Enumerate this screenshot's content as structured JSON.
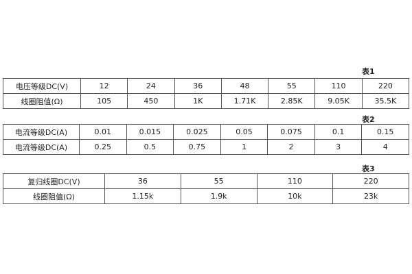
{
  "table1": {
    "caption": "表1",
    "rows": [
      [
        "电压等级DC(V)",
        "12",
        "24",
        "36",
        "48",
        "55",
        "110",
        "220"
      ],
      [
        "线圈阻值(Ω)",
        "105",
        "450",
        "1K",
        "1.71K",
        "2.85K",
        "9.05K",
        "35.5K"
      ]
    ]
  },
  "table2": {
    "caption": "表2",
    "rows": [
      [
        "电流等级DC(A)",
        "0.01",
        "0.015",
        "0.025",
        "0.05",
        "0.075",
        "0.1",
        "0.15"
      ],
      [
        "电流等级DC(A)",
        "0.25",
        "0.5",
        "0.75",
        "1",
        "2",
        "3",
        "4"
      ]
    ]
  },
  "table3": {
    "caption": "表3",
    "rows": [
      [
        "复归线圈DC(V)",
        "36",
        "55",
        "110",
        "220"
      ],
      [
        "线圈阻值(Ω)",
        "1.15k",
        "1.9k",
        "10k",
        "23k"
      ]
    ]
  }
}
